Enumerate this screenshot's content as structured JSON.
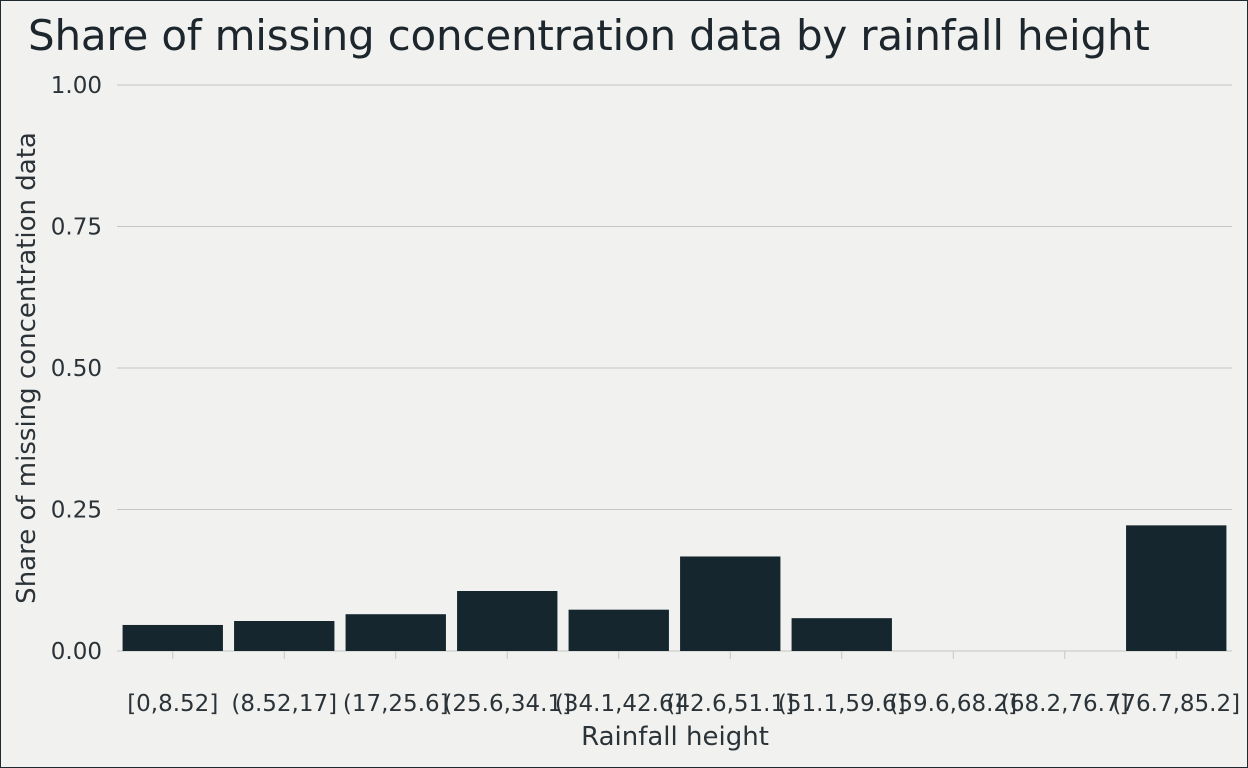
{
  "chart_data": {
    "type": "bar",
    "title": "Share of missing concentration data by rainfall height",
    "xlabel": "Rainfall height",
    "ylabel": "Share of missing concentration data",
    "categories": [
      "[0,8.52]",
      "(8.52,17]",
      "(17,25.6]",
      "(25.6,34.1]",
      "(34.1,42.6]",
      "(42.6,51.1]",
      "(51.1,59.6]",
      "(59.6,68.2]",
      "(68.2,76.7]",
      "(76.7,85.2]"
    ],
    "values": [
      0.046,
      0.053,
      0.065,
      0.106,
      0.073,
      0.167,
      0.058,
      0,
      0,
      0.222
    ],
    "ylim": [
      0,
      1
    ],
    "yticks": [
      0,
      0.25,
      0.5,
      0.75,
      1
    ],
    "ytick_labels": [
      "0.00",
      "0.25",
      "0.50",
      "0.75",
      "1.00"
    ],
    "grid": true,
    "legend": "none",
    "colors": {
      "bar": "#15262e",
      "grid": "#c4c7c5",
      "background": "#f1f2ef"
    }
  }
}
